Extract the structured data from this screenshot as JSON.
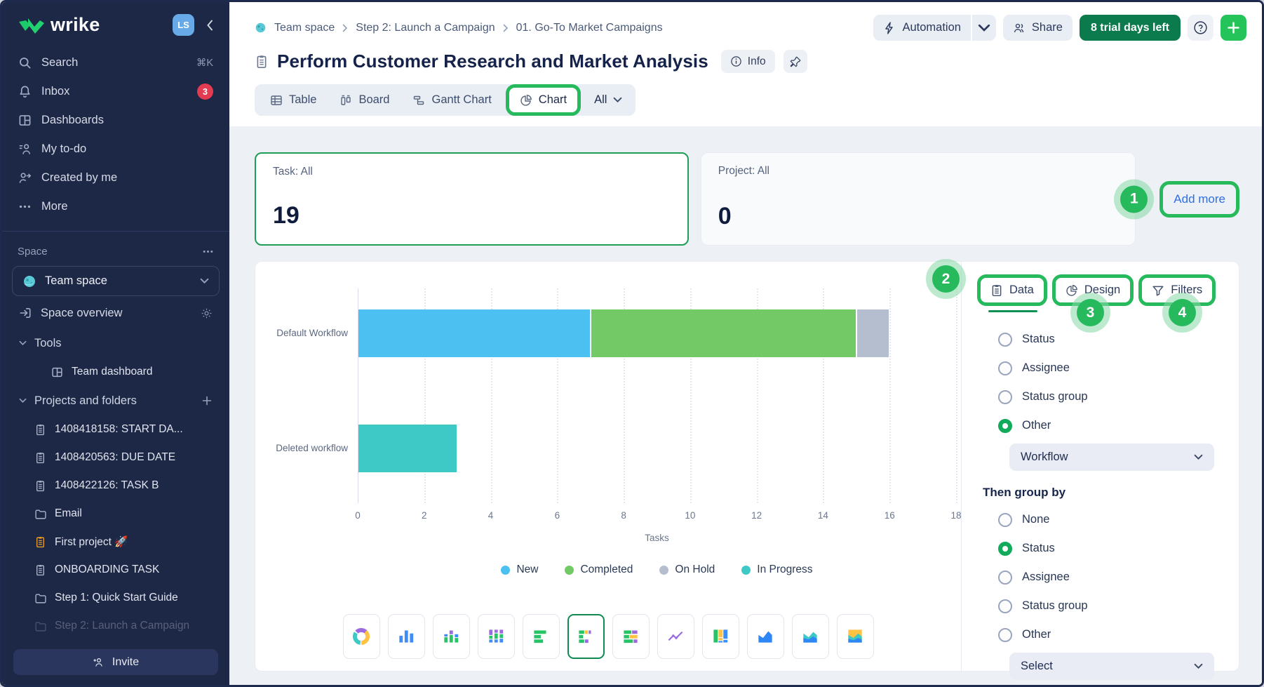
{
  "app": {
    "logo_text": "wrike",
    "avatar_initials": "LS"
  },
  "sidebar": {
    "nav": [
      {
        "label": "Search",
        "icon": "search",
        "shortcut": "⌘K"
      },
      {
        "label": "Inbox",
        "icon": "bell",
        "badge": "3"
      },
      {
        "label": "Dashboards",
        "icon": "dashboards"
      },
      {
        "label": "My to-do",
        "icon": "todo"
      },
      {
        "label": "Created by me",
        "icon": "created"
      },
      {
        "label": "More",
        "icon": "more"
      }
    ],
    "space_section_label": "Space",
    "space_name": "Team space",
    "space_overview_label": "Space overview",
    "tools_label": "Tools",
    "tools_items": [
      {
        "label": "Team dashboard",
        "icon": "dashboards"
      }
    ],
    "projects_label": "Projects and folders",
    "projects": [
      {
        "label": "1408418158: START DA...",
        "icon": "task"
      },
      {
        "label": "1408420563: DUE DATE",
        "icon": "task"
      },
      {
        "label": "1408422126: TASK B",
        "icon": "task"
      },
      {
        "label": "Email",
        "icon": "folder"
      },
      {
        "label": "First project 🚀",
        "icon": "task-orange"
      },
      {
        "label": "ONBOARDING TASK",
        "icon": "task"
      },
      {
        "label": "Step 1: Quick Start Guide",
        "icon": "folder"
      },
      {
        "label": "Step 2: Launch a Campaign",
        "icon": "folder",
        "faded": true
      }
    ],
    "invite_label": "Invite"
  },
  "header": {
    "breadcrumb": [
      "Team space",
      "Step 2: Launch a Campaign",
      "01. Go-To Market Campaigns"
    ],
    "actions": {
      "automation_label": "Automation",
      "share_label": "Share",
      "trial_label": "8 trial days left"
    },
    "title": "Perform Customer Research and Market Analysis",
    "info_label": "Info",
    "view_tabs": [
      {
        "label": "Table",
        "icon": "table"
      },
      {
        "label": "Board",
        "icon": "board"
      },
      {
        "label": "Gantt Chart",
        "icon": "gantt"
      },
      {
        "label": "Chart",
        "icon": "pie",
        "active": true,
        "annotated": true
      }
    ],
    "view_filter_label": "All"
  },
  "summary_cards": [
    {
      "label": "Task: All",
      "value": "19",
      "highlighted": true
    },
    {
      "label": "Project: All",
      "value": "0",
      "highlighted": false
    }
  ],
  "add_more_label": "Add more",
  "chart_data": {
    "type": "bar",
    "orientation": "horizontal",
    "stacked": true,
    "categories": [
      "Default Workflow",
      "Deleted workflow"
    ],
    "series": [
      {
        "name": "New",
        "color": "#4DC0F2",
        "values": [
          7,
          0
        ]
      },
      {
        "name": "Completed",
        "color": "#72C965",
        "values": [
          8,
          0
        ]
      },
      {
        "name": "On Hold",
        "color": "#B5BECE",
        "values": [
          1,
          0
        ]
      },
      {
        "name": "In Progress",
        "color": "#3EC8C6",
        "values": [
          0,
          3
        ]
      }
    ],
    "xlabel": "Tasks",
    "xlim": [
      0,
      18
    ],
    "xticks": [
      0,
      2,
      4,
      6,
      8,
      10,
      12,
      14,
      16,
      18
    ],
    "grid": "vertical-dashed",
    "legend_position": "bottom"
  },
  "chart_types": [
    {
      "name": "donut"
    },
    {
      "name": "column"
    },
    {
      "name": "column-stacked"
    },
    {
      "name": "column-stacked-full"
    },
    {
      "name": "bar-horizontal"
    },
    {
      "name": "bar-horizontal-stacked",
      "selected": true
    },
    {
      "name": "bar-horizontal-stacked-full"
    },
    {
      "name": "line"
    },
    {
      "name": "mosaic"
    },
    {
      "name": "area"
    },
    {
      "name": "area-stacked"
    },
    {
      "name": "area-stacked-full"
    }
  ],
  "panel": {
    "tabs": [
      {
        "label": "Data",
        "icon": "clipboard",
        "active": true
      },
      {
        "label": "Design",
        "icon": "pie"
      },
      {
        "label": "Filters",
        "icon": "funnel"
      }
    ],
    "group_by": {
      "options": [
        "Status",
        "Assignee",
        "Status group",
        "Other"
      ],
      "selected": "Other",
      "dropdown_value": "Workflow"
    },
    "then_group_by": {
      "heading": "Then group by",
      "options": [
        "None",
        "Status",
        "Assignee",
        "Status group",
        "Other"
      ],
      "selected": "Status",
      "dropdown_value": "Select"
    }
  },
  "annotations": {
    "steps": [
      "1",
      "2",
      "3",
      "4"
    ]
  },
  "colors": {
    "annotation": "#26BA5D",
    "selection_border": "#1F9E55",
    "link": "#2F6FE5",
    "trial_badge": "#0B7B4E",
    "add_button": "#24C45A",
    "sidebar_bg": "#1D2746",
    "badge_red": "#E23B52",
    "avatar_blue": "#68A9E8"
  }
}
